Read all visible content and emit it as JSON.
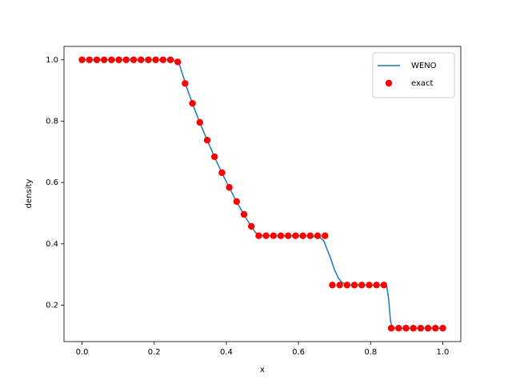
{
  "chart_data": {
    "type": "line",
    "x_label": "x",
    "y_label": "density",
    "xlim": [
      -0.05,
      1.05
    ],
    "ylim": [
      0.08125,
      1.04375
    ],
    "xticks": [
      {
        "value": 0,
        "label": "0.0"
      },
      0.2,
      0.4,
      0.6,
      0.8,
      {
        "value": 1,
        "label": "1.0"
      }
    ],
    "yticks": [
      0.2,
      0.4,
      0.6,
      0.8,
      {
        "value": 1,
        "label": "1.0"
      }
    ],
    "grid": false,
    "legend": "upper right",
    "series": [
      {
        "name": "WENO",
        "type": "line",
        "color": "#1f77b4",
        "x": [
          0,
          0.24,
          0.255,
          0.27,
          0.29,
          0.31,
          0.33,
          0.35,
          0.37,
          0.39,
          0.41,
          0.43,
          0.45,
          0.47,
          0.48,
          0.49,
          0.5,
          0.64,
          0.66,
          0.67,
          0.68,
          0.69,
          0.7,
          0.71,
          0.72,
          0.73,
          0.75,
          0.84,
          0.845,
          0.85,
          0.855,
          0.86,
          0.87,
          1.0
        ],
        "values": [
          1,
          1,
          0.998,
          0.985,
          0.91,
          0.845,
          0.785,
          0.73,
          0.676,
          0.626,
          0.579,
          0.534,
          0.493,
          0.455,
          0.438,
          0.428,
          0.4263,
          0.4263,
          0.42,
          0.41,
          0.38,
          0.35,
          0.315,
          0.29,
          0.275,
          0.268,
          0.2656,
          0.2656,
          0.26,
          0.22,
          0.15,
          0.127,
          0.125,
          0.125
        ]
      },
      {
        "name": "exact",
        "type": "scatter",
        "color": "#ff0000",
        "x": [
          0,
          0.0204,
          0.0408,
          0.0612,
          0.0816,
          0.102,
          0.1224,
          0.1429,
          0.1633,
          0.1837,
          0.2041,
          0.2245,
          0.2449,
          0.2653,
          0.2857,
          0.3061,
          0.3265,
          0.3469,
          0.3673,
          0.3878,
          0.4082,
          0.4286,
          0.449,
          0.4694,
          0.4898,
          0.5102,
          0.5306,
          0.551,
          0.5714,
          0.5918,
          0.6122,
          0.6327,
          0.6531,
          0.6735,
          0.6939,
          0.7143,
          0.7347,
          0.7551,
          0.7755,
          0.7959,
          0.8163,
          0.8367,
          0.8571,
          0.8776,
          0.898,
          0.9184,
          0.9388,
          0.9592,
          0.9796,
          1.0
        ],
        "values": [
          1,
          1,
          1,
          1,
          1,
          1,
          1,
          1,
          1,
          1,
          1,
          1,
          1,
          0.993,
          0.923,
          0.858,
          0.796,
          0.738,
          0.684,
          0.632,
          0.584,
          0.538,
          0.496,
          0.457,
          0.4263,
          0.4263,
          0.4263,
          0.4263,
          0.4263,
          0.4263,
          0.4263,
          0.4263,
          0.4263,
          0.4263,
          0.2656,
          0.2656,
          0.2656,
          0.2656,
          0.2656,
          0.2656,
          0.2656,
          0.2656,
          0.125,
          0.125,
          0.125,
          0.125,
          0.125,
          0.125,
          0.125,
          0.125
        ]
      }
    ]
  }
}
